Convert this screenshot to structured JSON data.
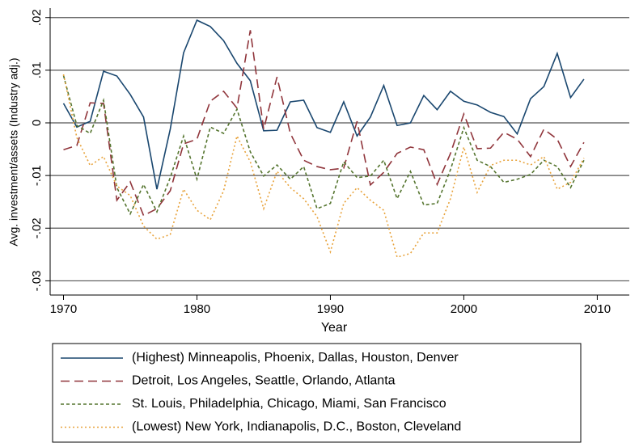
{
  "chart_data": {
    "type": "line",
    "y_label": "Avg. investment/assets (Industry adj.)",
    "x_label": "Year",
    "x": [
      1970,
      1971,
      1972,
      1973,
      1974,
      1975,
      1976,
      1977,
      1978,
      1979,
      1980,
      1981,
      1982,
      1983,
      1984,
      1985,
      1986,
      1987,
      1988,
      1989,
      1990,
      1991,
      1992,
      1993,
      1994,
      1995,
      1996,
      1997,
      1998,
      1999,
      2000,
      2001,
      2002,
      2003,
      2004,
      2005,
      2006,
      2007,
      2008,
      2009
    ],
    "series": [
      {
        "name": "(Highest) Minneapolis, Phoenix, Dallas, Houston, Denver",
        "color": "#1a476f",
        "dash": "none",
        "values": [
          0.0037,
          -0.0008,
          0.0003,
          0.0098,
          0.0089,
          0.0054,
          0.0011,
          -0.0126,
          -0.0012,
          0.0133,
          0.0195,
          0.0183,
          0.0156,
          0.0113,
          0.008,
          -0.0015,
          -0.0014,
          0.004,
          0.0043,
          -0.0009,
          -0.0018,
          0.004,
          -0.0025,
          0.0011,
          0.0071,
          -0.0005,
          0,
          0.0052,
          0.0025,
          0.006,
          0.0041,
          0.0034,
          0.002,
          0.0012,
          -0.0021,
          0.0046,
          0.0069,
          0.0132,
          0.0048,
          0.0083
        ]
      },
      {
        "name": "Detroit, Los Angeles, Seattle, Orlando, Atlanta",
        "color": "#90353b",
        "dash": "11,6",
        "values": [
          -0.0051,
          -0.0043,
          0.0038,
          0.0037,
          -0.0147,
          -0.0112,
          -0.0176,
          -0.0163,
          -0.0129,
          -0.004,
          -0.0031,
          0.0041,
          0.006,
          0.0028,
          0.0176,
          -0.0012,
          0.0087,
          -0.002,
          -0.0071,
          -0.0083,
          -0.0089,
          -0.0086,
          0.0003,
          -0.0118,
          -0.0094,
          -0.0058,
          -0.0046,
          -0.0051,
          -0.0117,
          -0.0058,
          0.0017,
          -0.0049,
          -0.0048,
          -0.0018,
          -0.0031,
          -0.0064,
          -0.0012,
          -0.0031,
          -0.0083,
          -0.0037
        ]
      },
      {
        "name": "St. Louis, Philadelphia, Chicago, Miami, San Francisco",
        "color": "#55752f",
        "dash": "4,3",
        "values": [
          0.009,
          -0.0005,
          -0.002,
          0.0043,
          -0.0123,
          -0.0173,
          -0.0117,
          -0.0169,
          -0.0104,
          -0.0025,
          -0.0107,
          -0.0008,
          -0.002,
          0.0026,
          -0.0055,
          -0.0101,
          -0.008,
          -0.0107,
          -0.0083,
          -0.0163,
          -0.0153,
          -0.0074,
          -0.0104,
          -0.0101,
          -0.0071,
          -0.0144,
          -0.0092,
          -0.0156,
          -0.0153,
          -0.0089,
          -0.0009,
          -0.0071,
          -0.0083,
          -0.0113,
          -0.0107,
          -0.0098,
          -0.0071,
          -0.0083,
          -0.0123,
          -0.0071
        ]
      },
      {
        "name": "(Lowest) New York, Indianapolis, D.C., Boston, Cleveland",
        "color": "#e8a33c",
        "dash": "2,3",
        "values": [
          0.0092,
          -0.0028,
          -0.0081,
          -0.0064,
          -0.012,
          -0.0138,
          -0.0196,
          -0.0221,
          -0.0212,
          -0.0126,
          -0.0166,
          -0.0184,
          -0.0129,
          -0.0025,
          -0.0074,
          -0.0163,
          -0.0092,
          -0.0123,
          -0.0144,
          -0.0178,
          -0.0245,
          -0.0153,
          -0.0123,
          -0.0147,
          -0.0166,
          -0.0255,
          -0.0248,
          -0.0209,
          -0.0209,
          -0.0144,
          -0.0046,
          -0.0132,
          -0.0081,
          -0.0071,
          -0.0071,
          -0.008,
          -0.0064,
          -0.0126,
          -0.0113,
          -0.0067
        ]
      }
    ],
    "xlim": [
      1969,
      2012.4
    ],
    "ylim": [
      -0.0327,
      0.0218
    ],
    "xticks": [
      1970,
      1980,
      1990,
      2000,
      2010
    ],
    "yticks": [
      {
        "value": 0.02,
        "label": ".02"
      },
      {
        "value": 0.01,
        "label": ".01"
      },
      0,
      {
        "value": -0.01,
        "label": "-.01"
      },
      {
        "value": -0.02,
        "label": "-.02"
      },
      {
        "value": -0.03,
        "label": "-.03"
      }
    ],
    "grid": true
  }
}
